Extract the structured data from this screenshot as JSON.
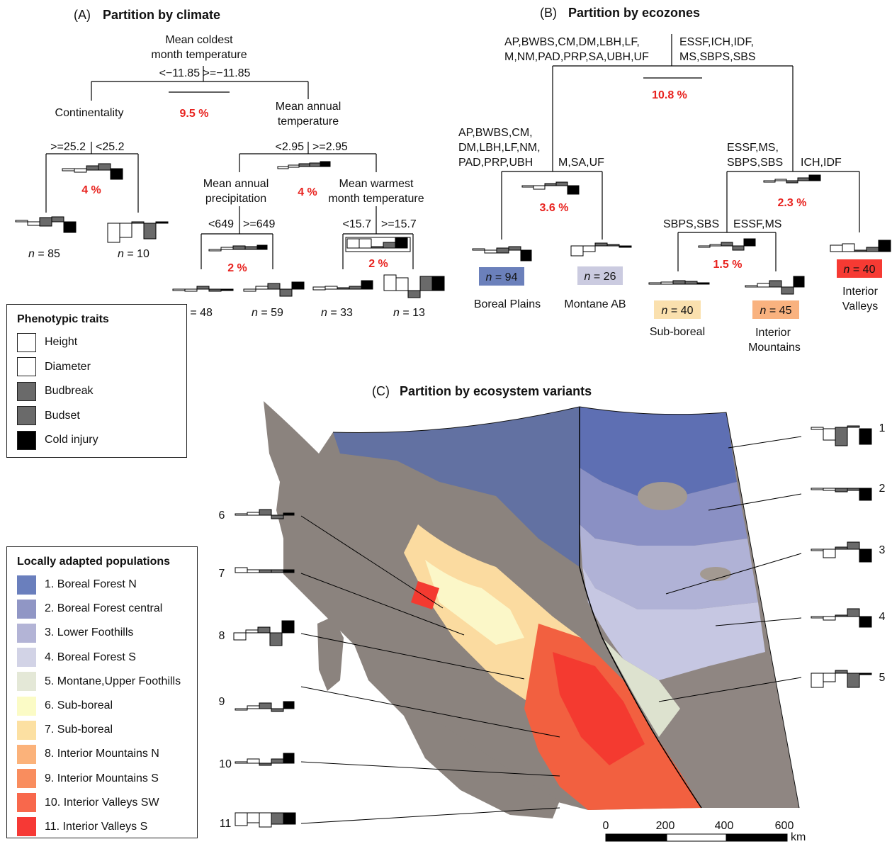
{
  "panels": {
    "a": {
      "letter": "(A)",
      "title": "Partition by climate"
    },
    "b": {
      "letter": "(B)",
      "title": "Partition by ecozones"
    },
    "c": {
      "letter": "(C)",
      "title": "Partition by ecosystem variants"
    }
  },
  "climate_tree": {
    "root_l1": "Mean coldest",
    "root_l2": "month temperature",
    "root_split": "<−11.85 >=−11.85",
    "root_pct": "9.5 %",
    "left_var": "Continentality",
    "left_lo": ">=25.2",
    "left_hi": "<25.2",
    "left_pct": "4 %",
    "right_l1": "Mean annual",
    "right_l2": "temperature",
    "right_lo": "<2.95",
    "right_hi": ">=2.95",
    "right_pct": "4 %",
    "precip_l1": "Mean annual",
    "precip_l2": "precipitation",
    "precip_lo": "<649",
    "precip_hi": ">=649",
    "precip_pct": "2 %",
    "warm_l1": "Mean warmest",
    "warm_l2": "month temperature",
    "warm_lo": "<15.7",
    "warm_hi": ">=15.7",
    "warm_pct": "2 %",
    "n_prefix": "n",
    "n_values": [
      "= 85",
      "= 10",
      "= 48",
      "= 59",
      "= 33",
      "= 13"
    ]
  },
  "ecozone_tree": {
    "root_left_l1": "AP,BWBS,CM,DM,LBH,LF,",
    "root_left_l2": "M,NM,PAD,PRP,SA,UBH,UF",
    "root_right_l1": "ESSF,ICH,IDF,",
    "root_right_l2": "MS,SBPS,SBS",
    "root_pct": "10.8 %",
    "l_left_l1": "AP,BWBS,CM,",
    "l_left_l2": "DM,LBH,LF,NM,",
    "l_left_l3": "PAD,PRP,UBH",
    "l_right": "M,SA,UF",
    "l_pct": "3.6 %",
    "r_left_l1": "ESSF,MS,",
    "r_left_l2": "SBPS,SBS",
    "r_right": "ICH,IDF",
    "r_pct": "2.3 %",
    "rl_left": "SBPS,SBS",
    "rl_right": "ESSF,MS",
    "rl_pct": "1.5 %",
    "n_values": [
      "= 94",
      "= 26",
      "= 40",
      "= 45",
      "= 40"
    ],
    "n_colors": [
      "#6b80bb",
      "#cbcbe0",
      "#fae0ae",
      "#f9b27f",
      "#f63a33"
    ],
    "groups": [
      "Boreal Plains",
      "Montane AB",
      "Sub-boreal",
      "Interior",
      "Mountains",
      "Interior",
      "Valleys"
    ]
  },
  "legend_traits": {
    "title": "Phenotypic traits",
    "items": [
      {
        "label": "Height",
        "color": "#ffffff"
      },
      {
        "label": "Diameter",
        "color": "#ffffff"
      },
      {
        "label": "Budbreak",
        "color": "#6a6a6a"
      },
      {
        "label": "Budset",
        "color": "#6a6a6a"
      },
      {
        "label": "Cold injury",
        "color": "#000000"
      }
    ]
  },
  "legend_populations": {
    "title": "Locally adapted populations",
    "items": [
      {
        "label": "1. Boreal Forest N",
        "color": "#6a7fbd"
      },
      {
        "label": "2. Boreal Forest central",
        "color": "#9096c5"
      },
      {
        "label": "3. Lower Foothills",
        "color": "#b3b4d6"
      },
      {
        "label": "4. Boreal Forest S",
        "color": "#d2d3e6"
      },
      {
        "label": "5. Montane,Upper Foothills",
        "color": "#e4e8d7"
      },
      {
        "label": "6. Sub-boreal",
        "color": "#fbfbc6"
      },
      {
        "label": "7. Sub-boreal",
        "color": "#fce0a2"
      },
      {
        "label": "8. Interior Mountains N",
        "color": "#fbb27a"
      },
      {
        "label": "9. Interior Mountains S",
        "color": "#f98d5e"
      },
      {
        "label": "10. Interior Valleys SW",
        "color": "#f8684c"
      },
      {
        "label": "11. Interior Valleys S",
        "color": "#f63935"
      }
    ]
  },
  "map_labels_right": [
    "1",
    "2",
    "3",
    "4",
    "5"
  ],
  "map_labels_left": [
    "6",
    "7",
    "8",
    "9",
    "10",
    "11"
  ],
  "scale": {
    "ticks": [
      "0",
      "200",
      "400",
      "600"
    ],
    "unit": "km"
  }
}
